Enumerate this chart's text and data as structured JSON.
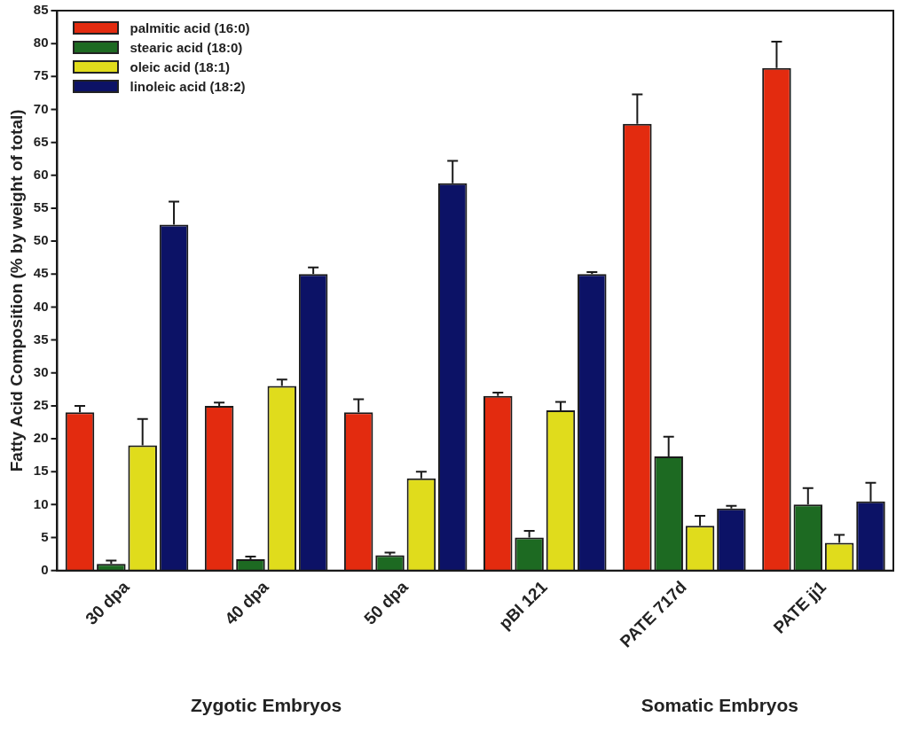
{
  "chart_data": {
    "type": "bar",
    "ylabel": "Fatty Acid Composition (% by weight of total)",
    "categories": [
      "30 dpa",
      "40 dpa",
      "50 dpa",
      "pBI 121",
      "PATE 717d",
      "PATE jj1"
    ],
    "series": [
      {
        "name": "palmitic acid (16:0)",
        "color": "#e32b0f",
        "values": [
          24,
          25,
          24,
          26.5,
          67.8,
          76.3
        ],
        "errors": [
          [
            24,
            25
          ],
          [
            25,
            25.5
          ],
          [
            24,
            26
          ],
          [
            26.5,
            27
          ],
          [
            67.8,
            72.3
          ],
          [
            76.3,
            80.3
          ]
        ]
      },
      {
        "name": "stearic acid (18:0)",
        "color": "#1d6a22",
        "values": [
          1,
          1.7,
          2.3,
          5,
          17.3,
          10
        ],
        "errors": [
          [
            1,
            1.5
          ],
          [
            1.7,
            2.1
          ],
          [
            2.3,
            2.7
          ],
          [
            5,
            6
          ],
          [
            17.3,
            20.3
          ],
          [
            10,
            12.5
          ]
        ]
      },
      {
        "name": "oleic acid (18:1)",
        "color": "#e0dc1c",
        "values": [
          19,
          28,
          14,
          24.3,
          6.8,
          4.2
        ],
        "errors": [
          [
            19,
            23
          ],
          [
            28,
            29
          ],
          [
            14,
            15
          ],
          [
            24.3,
            25.6
          ],
          [
            6.8,
            8.3
          ],
          [
            4.2,
            5.4
          ]
        ]
      },
      {
        "name": "linoleic acid (18:2)",
        "color": "#0c1266",
        "values": [
          52.5,
          45,
          58.8,
          45,
          9.4,
          10.5
        ],
        "errors": [
          [
            52.5,
            56
          ],
          [
            45,
            46
          ],
          [
            58.8,
            62.2
          ],
          [
            45,
            45.3
          ],
          [
            9.4,
            9.8
          ],
          [
            10.5,
            13.3
          ]
        ]
      }
    ],
    "ylim": [
      0,
      85
    ],
    "yticks": [
      0,
      5,
      10,
      15,
      20,
      25,
      30,
      35,
      40,
      45,
      50,
      55,
      60,
      65,
      70,
      75,
      80,
      85
    ],
    "grid": false,
    "legend": "top left",
    "annotations": [
      "Zygotic Embryos",
      "Somatic Embryos"
    ]
  }
}
